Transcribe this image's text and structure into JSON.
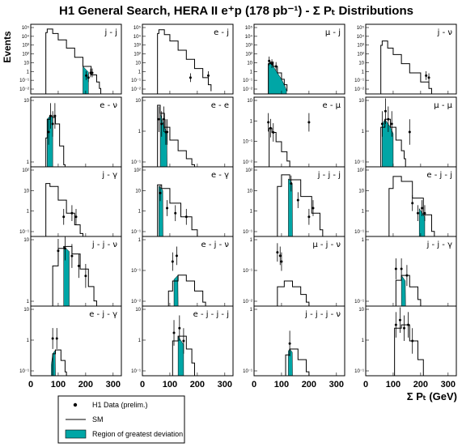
{
  "chart_data": {
    "type": "histogram-grid",
    "title": "H1 General Search, HERA II e⁺p (178 pb⁻¹) - Σ Pₜ Distributions",
    "ylabel": "Events",
    "xlabel": "Σ Pₜ (GeV)",
    "xlim": [
      0,
      330
    ],
    "xticks": [
      "0",
      "100",
      "200",
      "300"
    ],
    "log_y": true,
    "colors": {
      "region": "#00a6a6",
      "frame": "#000000"
    },
    "legend": {
      "items": [
        {
          "key": "data",
          "label": "H1 Data (prelim.)"
        },
        {
          "key": "sm",
          "label": "SM"
        },
        {
          "key": "region",
          "label": "Region of greatest deviation"
        }
      ]
    },
    "panels": [
      {
        "channel": "j - j",
        "ylim": [
          0.005,
          200000
        ],
        "yticks": [
          "10⁻²",
          "10⁻¹",
          "1",
          "10",
          "10²",
          "10³",
          "10⁴",
          "10⁵"
        ],
        "sm": [
          [
            50,
            0.005
          ],
          [
            55,
            25000
          ],
          [
            60,
            60000
          ],
          [
            80,
            20000
          ],
          [
            100,
            4000
          ],
          [
            130,
            500
          ],
          [
            160,
            50
          ],
          [
            190,
            5
          ],
          [
            220,
            0.6
          ],
          [
            240,
            0.1
          ],
          [
            250,
            0.02
          ],
          [
            255,
            0.005
          ]
        ],
        "region": [
          190,
          210
        ],
        "data": [
          [
            202,
            0.5
          ],
          [
            210,
            0.3
          ],
          [
            218,
            1
          ],
          [
            224,
            1
          ]
        ]
      },
      {
        "channel": "e - j",
        "ylim": [
          0.005,
          200000
        ],
        "yticks": [
          "10⁻²",
          "10⁻¹",
          "1",
          "10",
          "10²",
          "10³",
          "10⁴",
          "10⁵"
        ],
        "sm": [
          [
            50,
            0.005
          ],
          [
            55,
            20000
          ],
          [
            60,
            50000
          ],
          [
            80,
            15000
          ],
          [
            100,
            3000
          ],
          [
            130,
            300
          ],
          [
            160,
            30
          ],
          [
            190,
            3
          ],
          [
            220,
            0.3
          ],
          [
            240,
            0.05
          ],
          [
            250,
            0.01
          ]
        ],
        "region": [],
        "data": [
          [
            175,
            0.3
          ],
          [
            240,
            0.5
          ]
        ]
      },
      {
        "channel": "μ - j",
        "ylim": [
          0.005,
          200000
        ],
        "yticks": [
          "10⁻²",
          "10⁻¹",
          "1",
          "10",
          "10²",
          "10³",
          "10⁴",
          "10⁵"
        ],
        "sm": [
          [
            50,
            0.005
          ],
          [
            52,
            10
          ],
          [
            60,
            15
          ],
          [
            70,
            5
          ],
          [
            85,
            1
          ],
          [
            100,
            0.2
          ],
          [
            110,
            0.05
          ],
          [
            120,
            0.01
          ]
        ],
        "region": [
          52,
          118
        ],
        "data": [
          [
            55,
            20
          ],
          [
            65,
            10
          ],
          [
            80,
            5
          ]
        ]
      },
      {
        "channel": "j - ν",
        "ylim": [
          0.005,
          200000
        ],
        "yticks": [
          "10⁻²",
          "10⁻¹",
          "1",
          "10",
          "10²",
          "10³",
          "10⁴",
          "10⁵"
        ],
        "sm": [
          [
            50,
            0.005
          ],
          [
            55,
            1000
          ],
          [
            60,
            3000
          ],
          [
            80,
            500
          ],
          [
            100,
            100
          ],
          [
            130,
            10
          ],
          [
            160,
            1
          ],
          [
            200,
            0.1
          ],
          [
            230,
            0.02
          ],
          [
            240,
            0.005
          ]
        ],
        "region": [],
        "data": [
          [
            220,
            0.5
          ],
          [
            230,
            0.3
          ]
        ]
      },
      {
        "channel": "e - ν",
        "ylim": [
          0.05,
          20
        ],
        "yticks": [
          "1",
          "10"
        ],
        "sm": [
          [
            50,
            0.05
          ],
          [
            55,
            0.6
          ],
          [
            60,
            3
          ],
          [
            70,
            4
          ],
          [
            80,
            3.5
          ],
          [
            90,
            2
          ],
          [
            105,
            0.3
          ],
          [
            120,
            0.06
          ],
          [
            125,
            0.05
          ]
        ],
        "region": [
          60,
          80
        ],
        "data": [
          [
            65,
            1
          ],
          [
            72,
            4
          ],
          [
            80,
            2
          ],
          [
            88,
            4
          ]
        ]
      },
      {
        "channel": "e - e",
        "ylim": [
          0.05,
          20
        ],
        "yticks": [
          "10⁻¹",
          "1",
          "10"
        ],
        "sm": [
          [
            50,
            0.05
          ],
          [
            55,
            10
          ],
          [
            65,
            5
          ],
          [
            80,
            1.5
          ],
          [
            100,
            0.5
          ],
          [
            130,
            0.2
          ],
          [
            160,
            0.1
          ],
          [
            180,
            0.06
          ],
          [
            190,
            0.05
          ]
        ],
        "region": [
          65,
          90
        ],
        "data": [
          [
            60,
            3
          ],
          [
            70,
            2
          ],
          [
            78,
            3
          ],
          [
            85,
            1
          ],
          [
            90,
            1
          ]
        ]
      },
      {
        "channel": "e - μ",
        "ylim": [
          0.005,
          20
        ],
        "yticks": [
          "10⁻²",
          "10⁻¹",
          "1",
          "10"
        ],
        "sm": [
          [
            50,
            0.005
          ],
          [
            55,
            0.5
          ],
          [
            65,
            0.3
          ],
          [
            80,
            0.1
          ],
          [
            100,
            0.03
          ],
          [
            120,
            0.01
          ],
          [
            130,
            0.005
          ]
        ],
        "region": [],
        "data": [
          [
            52,
            1
          ],
          [
            60,
            0.5
          ],
          [
            70,
            0.3
          ],
          [
            200,
            1
          ]
        ]
      },
      {
        "channel": "μ - μ",
        "ylim": [
          0.05,
          20
        ],
        "yticks": [
          "10⁻¹",
          "1",
          "10"
        ],
        "sm": [
          [
            50,
            0.05
          ],
          [
            55,
            1.5
          ],
          [
            70,
            3
          ],
          [
            90,
            1.5
          ],
          [
            110,
            0.5
          ],
          [
            130,
            0.2
          ],
          [
            140,
            0.1
          ],
          [
            145,
            0.05
          ]
        ],
        "region": [
          60,
          100
        ],
        "data": [
          [
            60,
            2
          ],
          [
            72,
            6
          ],
          [
            82,
            3
          ],
          [
            95,
            2
          ],
          [
            160,
            1
          ]
        ]
      },
      {
        "channel": "j - γ",
        "ylim": [
          0.02,
          300
        ],
        "yticks": [
          "10⁻¹",
          "1",
          "10",
          "10²"
        ],
        "sm": [
          [
            50,
            0.02
          ],
          [
            55,
            30
          ],
          [
            70,
            20
          ],
          [
            100,
            3
          ],
          [
            130,
            0.5
          ],
          [
            160,
            0.1
          ],
          [
            180,
            0.03
          ],
          [
            190,
            0.02
          ]
        ],
        "region": [],
        "data": [
          [
            120,
            0.3
          ],
          [
            150,
            0.5
          ],
          [
            165,
            0.3
          ]
        ]
      },
      {
        "channel": "e - γ",
        "ylim": [
          0.02,
          300
        ],
        "yticks": [
          "10⁻¹",
          "1",
          "10",
          "10²"
        ],
        "sm": [
          [
            50,
            0.02
          ],
          [
            55,
            25
          ],
          [
            70,
            15
          ],
          [
            100,
            2
          ],
          [
            140,
            0.3
          ],
          [
            180,
            0.05
          ],
          [
            200,
            0.02
          ]
        ],
        "region": [
          60,
          75
        ],
        "data": [
          [
            65,
            8
          ],
          [
            90,
            1
          ],
          [
            120,
            0.5
          ],
          [
            160,
            0.3
          ]
        ]
      },
      {
        "channel": "j - j - j",
        "ylim": [
          0.02,
          300
        ],
        "yticks": [
          "10⁻¹",
          "1",
          "10",
          "10²"
        ],
        "sm": [
          [
            80,
            0.02
          ],
          [
            85,
            20
          ],
          [
            100,
            100
          ],
          [
            130,
            50
          ],
          [
            170,
            5
          ],
          [
            210,
            0.5
          ],
          [
            240,
            0.05
          ],
          [
            250,
            0.02
          ]
        ],
        "region": [
          125,
          140
        ],
        "data": [
          [
            135,
            30
          ],
          [
            160,
            3
          ],
          [
            200,
            0.3
          ],
          [
            215,
            1
          ]
        ]
      },
      {
        "channel": "e - j - j",
        "ylim": [
          0.02,
          300
        ],
        "yticks": [
          "10⁻¹",
          "1",
          "10",
          "10²"
        ],
        "sm": [
          [
            80,
            0.02
          ],
          [
            85,
            15
          ],
          [
            100,
            80
          ],
          [
            130,
            40
          ],
          [
            170,
            4
          ],
          [
            210,
            0.4
          ],
          [
            240,
            0.04
          ],
          [
            250,
            0.02
          ]
        ],
        "region": [
          195,
          215
        ],
        "data": [
          [
            170,
            2
          ],
          [
            190,
            0.5
          ],
          [
            205,
            1
          ],
          [
            215,
            0.5
          ]
        ]
      },
      {
        "channel": "j - j - ν",
        "ylim": [
          0.05,
          30
        ],
        "yticks": [
          "1",
          "10"
        ],
        "sm": [
          [
            70,
            0.05
          ],
          [
            80,
            2
          ],
          [
            100,
            10
          ],
          [
            120,
            12
          ],
          [
            150,
            6
          ],
          [
            180,
            1.5
          ],
          [
            210,
            0.3
          ],
          [
            230,
            0.08
          ],
          [
            240,
            0.05
          ]
        ],
        "region": [
          120,
          140
        ],
        "data": [
          [
            100,
            8
          ],
          [
            125,
            10
          ],
          [
            150,
            5
          ],
          [
            175,
            2
          ],
          [
            200,
            0.8
          ]
        ]
      },
      {
        "channel": "e - j - ν",
        "ylim": [
          0.005,
          20
        ],
        "yticks": [
          "10⁻²",
          "10⁻¹",
          "1"
        ],
        "sm": [
          [
            80,
            0.005
          ],
          [
            95,
            0.03
          ],
          [
            110,
            0.1
          ],
          [
            130,
            0.2
          ],
          [
            160,
            0.1
          ],
          [
            190,
            0.03
          ],
          [
            220,
            0.008
          ],
          [
            230,
            0.005
          ]
        ],
        "region": [
          115,
          130
        ],
        "data": [
          [
            110,
            1
          ],
          [
            125,
            2
          ]
        ]
      },
      {
        "channel": "μ - j - ν",
        "ylim": [
          0.005,
          20
        ],
        "yticks": [
          "10⁻²",
          "10⁻¹",
          "1"
        ],
        "sm": [
          [
            70,
            0.005
          ],
          [
            85,
            0.05
          ],
          [
            110,
            0.1
          ],
          [
            140,
            0.05
          ],
          [
            170,
            0.02
          ],
          [
            190,
            0.008
          ],
          [
            200,
            0.005
          ]
        ],
        "region": [],
        "data": [
          [
            85,
            3
          ],
          [
            95,
            2
          ],
          [
            100,
            1
          ]
        ]
      },
      {
        "channel": "j - j - γ",
        "ylim": [
          0.02,
          30
        ],
        "yticks": [
          "10⁻¹",
          "1"
        ],
        "sm": [
          [
            90,
            0.02
          ],
          [
            110,
            0.3
          ],
          [
            130,
            0.5
          ],
          [
            160,
            0.15
          ],
          [
            190,
            0.04
          ],
          [
            200,
            0.02
          ]
        ],
        "region": [
          130,
          145
        ],
        "data": [
          [
            110,
            1
          ],
          [
            130,
            1
          ],
          [
            150,
            0.5
          ]
        ]
      },
      {
        "channel": "e - j - γ",
        "ylim": [
          0.02,
          30
        ],
        "yticks": [
          "10⁻¹",
          "1",
          "10"
        ],
        "sm": [
          [
            70,
            0.02
          ],
          [
            80,
            0.2
          ],
          [
            90,
            0.3
          ],
          [
            110,
            0.1
          ],
          [
            125,
            0.03
          ],
          [
            130,
            0.02
          ]
        ],
        "region": [
          75,
          90
        ],
        "data": [
          [
            80,
            1
          ],
          [
            95,
            1
          ]
        ]
      },
      {
        "channel": "e - j - j - j",
        "ylim": [
          0.05,
          20
        ],
        "yticks": [
          "10⁻¹",
          "1",
          "10"
        ],
        "sm": [
          [
            100,
            0.05
          ],
          [
            110,
            1
          ],
          [
            130,
            1.5
          ],
          [
            160,
            0.5
          ],
          [
            180,
            0.15
          ],
          [
            190,
            0.05
          ]
        ],
        "region": [
          130,
          150
        ],
        "data": [
          [
            115,
            2
          ],
          [
            135,
            3
          ],
          [
            150,
            1
          ]
        ]
      },
      {
        "channel": "j - j - j - ν",
        "ylim": [
          0.05,
          20
        ],
        "yticks": [
          "10⁻¹",
          "1"
        ],
        "sm": [
          [
            100,
            0.05
          ],
          [
            115,
            0.3
          ],
          [
            130,
            0.5
          ],
          [
            160,
            0.2
          ],
          [
            190,
            0.07
          ],
          [
            200,
            0.05
          ]
        ],
        "region": [
          125,
          140
        ],
        "data": [
          [
            130,
            0.8
          ]
        ]
      },
      {
        "channel": "",
        "ylim": [
          0.05,
          20
        ],
        "yticks": [
          "10⁻¹",
          "1",
          "10"
        ],
        "sm": [
          [
            90,
            0.05
          ],
          [
            105,
            3
          ],
          [
            130,
            4
          ],
          [
            160,
            1
          ],
          [
            190,
            0.2
          ],
          [
            210,
            0.05
          ]
        ],
        "region": [],
        "data": [
          [
            110,
            4
          ],
          [
            125,
            6
          ],
          [
            140,
            3
          ],
          [
            155,
            4
          ],
          [
            170,
            1
          ]
        ]
      }
    ]
  }
}
